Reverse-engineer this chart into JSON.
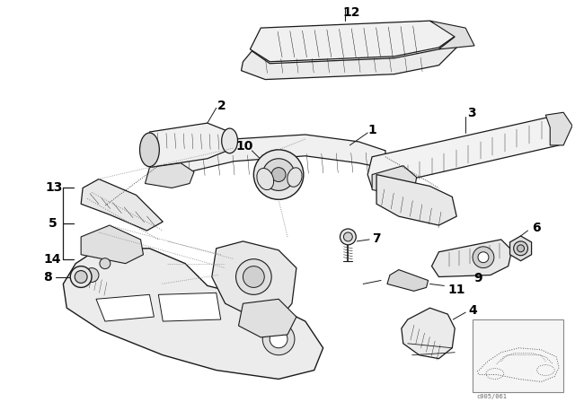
{
  "background_color": "#ffffff",
  "line_color": "#1a1a1a",
  "fig_width": 6.4,
  "fig_height": 4.48,
  "dpi": 100,
  "watermark": "c005/061"
}
